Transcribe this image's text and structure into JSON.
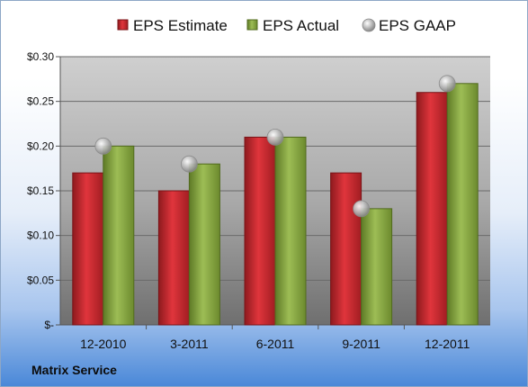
{
  "chart_data": {
    "type": "bar",
    "categories": [
      "12-2010",
      "3-2011",
      "6-2011",
      "9-2011",
      "12-2011"
    ],
    "series": [
      {
        "name": "EPS Estimate",
        "values": [
          0.17,
          0.15,
          0.21,
          0.17,
          0.26
        ],
        "color": "#c3252c",
        "marker": "bar"
      },
      {
        "name": "EPS Actual",
        "values": [
          0.2,
          0.18,
          0.21,
          0.13,
          0.27
        ],
        "color": "#7f9e3a",
        "marker": "bar"
      },
      {
        "name": "EPS GAAP",
        "values": [
          0.2,
          0.18,
          0.21,
          0.13,
          0.27
        ],
        "color": "#a9a9a9",
        "marker": "bubble"
      }
    ],
    "yticks": [
      {
        "value": 0.3,
        "label": "$0.30"
      },
      {
        "value": 0.25,
        "label": "$0.25"
      },
      {
        "value": 0.2,
        "label": "$0.20"
      },
      {
        "value": 0.15,
        "label": "$0.15"
      },
      {
        "value": 0.1,
        "label": "$0.10"
      },
      {
        "value": 0.05,
        "label": "$0.05"
      },
      {
        "value": 0,
        "label": "$-"
      }
    ],
    "ylim": [
      0,
      0.3
    ],
    "grid": true,
    "legend_position": "top"
  },
  "footer": {
    "company": "Matrix Service"
  }
}
